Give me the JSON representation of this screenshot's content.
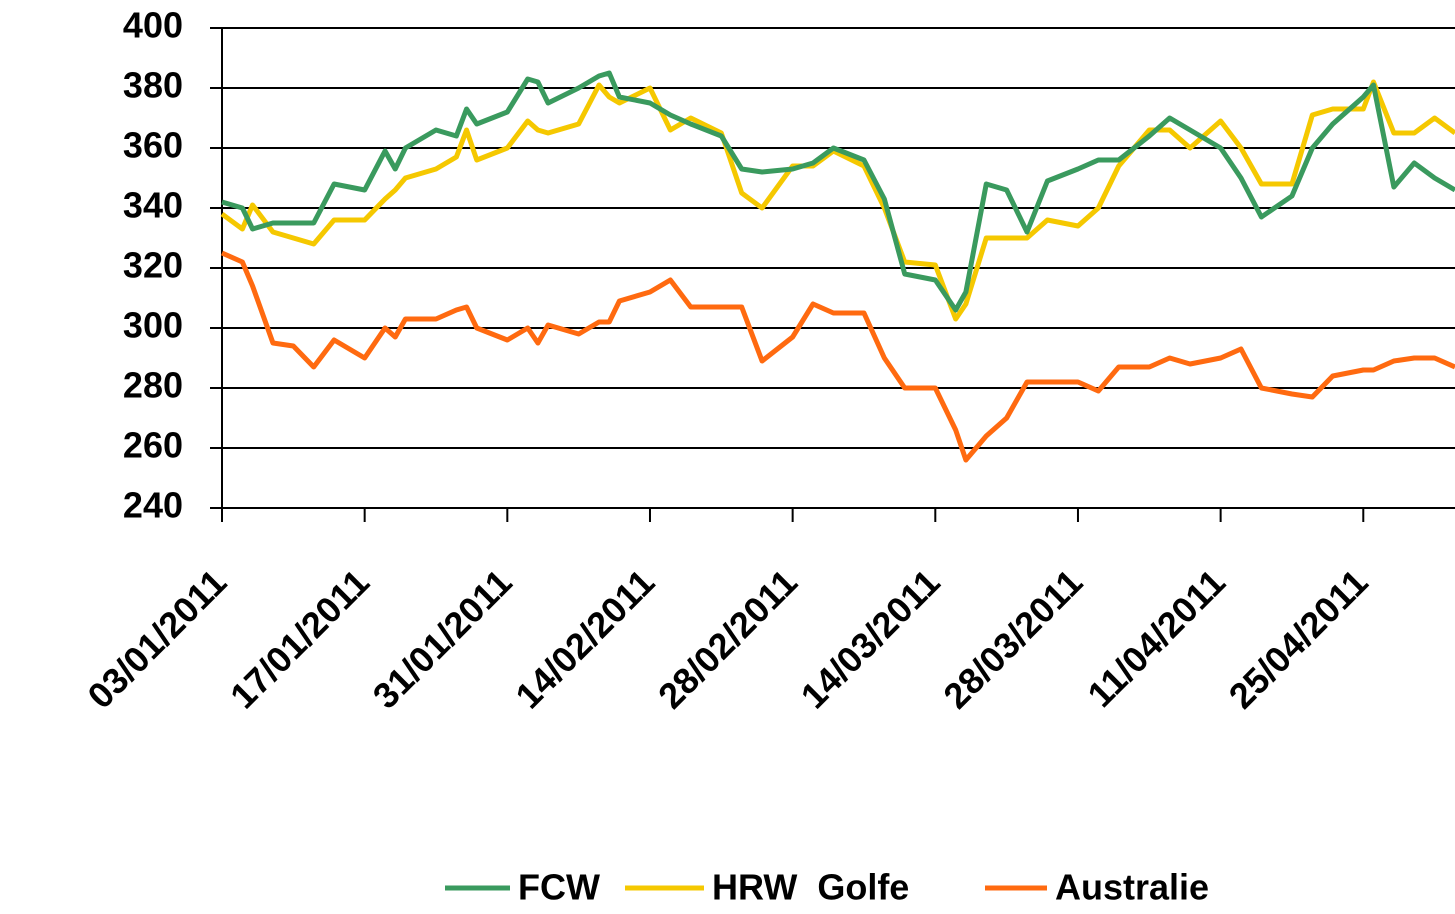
{
  "chart_data": {
    "type": "line",
    "x": [
      "03/01/2011",
      "05/01/2011",
      "06/01/2011",
      "08/01/2011",
      "10/01/2011",
      "12/01/2011",
      "14/01/2011",
      "17/01/2011",
      "19/01/2011",
      "20/01/2011",
      "21/01/2011",
      "24/01/2011",
      "26/01/2011",
      "27/01/2011",
      "28/01/2011",
      "31/01/2011",
      "02/02/2011",
      "03/02/2011",
      "04/02/2011",
      "07/02/2011",
      "09/02/2011",
      "10/02/2011",
      "11/02/2011",
      "14/02/2011",
      "16/02/2011",
      "18/02/2011",
      "21/02/2011",
      "23/02/2011",
      "25/02/2011",
      "28/02/2011",
      "02/03/2011",
      "04/03/2011",
      "07/03/2011",
      "09/03/2011",
      "11/03/2011",
      "14/03/2011",
      "16/03/2011",
      "17/03/2011",
      "19/03/2011",
      "21/03/2011",
      "23/03/2011",
      "25/03/2011",
      "28/03/2011",
      "30/03/2011",
      "01/04/2011",
      "04/04/2011",
      "06/04/2011",
      "08/04/2011",
      "11/04/2011",
      "13/04/2011",
      "15/04/2011",
      "18/04/2011",
      "20/04/2011",
      "22/04/2011",
      "25/04/2011",
      "26/04/2011",
      "28/04/2011",
      "30/04/2011",
      "02/05/2011",
      "04/05/2011"
    ],
    "series": [
      {
        "name": "FCW",
        "color": "#3a9a5e",
        "values": [
          342,
          340,
          333,
          335,
          335,
          335,
          348,
          346,
          359,
          353,
          360,
          366,
          364,
          373,
          368,
          372,
          383,
          382,
          375,
          380,
          384,
          385,
          377,
          375,
          371,
          368,
          364,
          353,
          352,
          353,
          355,
          360,
          356,
          343,
          318,
          316,
          306,
          312,
          348,
          346,
          332,
          349,
          353,
          356,
          356,
          364,
          370,
          366,
          360,
          350,
          337,
          344,
          360,
          368,
          377,
          381,
          347,
          355,
          350,
          346
        ]
      },
      {
        "name": "HRW  Golfe",
        "color": "#f5c800",
        "values": [
          338,
          333,
          341,
          332,
          330,
          328,
          336,
          336,
          343,
          346,
          350,
          353,
          357,
          366,
          356,
          360,
          369,
          366,
          365,
          368,
          381,
          377,
          375,
          380,
          366,
          370,
          365,
          345,
          340,
          354,
          354,
          359,
          354,
          340,
          322,
          321,
          303,
          308,
          330,
          330,
          330,
          336,
          334,
          340,
          354,
          366,
          366,
          360,
          369,
          360,
          348,
          348,
          371,
          373,
          373,
          382,
          365,
          365,
          370,
          365
        ]
      },
      {
        "name": "Australie",
        "color": "#ff6a10",
        "values": [
          325,
          322,
          314,
          295,
          294,
          287,
          296,
          290,
          300,
          297,
          303,
          303,
          306,
          307,
          300,
          296,
          300,
          295,
          301,
          298,
          302,
          302,
          309,
          312,
          316,
          307,
          307,
          307,
          289,
          297,
          308,
          305,
          305,
          290,
          280,
          280,
          266,
          256,
          264,
          270,
          282,
          282,
          282,
          279,
          287,
          287,
          290,
          288,
          290,
          293,
          280,
          278,
          277,
          284,
          286,
          286,
          289,
          290,
          290,
          287
        ]
      }
    ],
    "xlim": [
      "03/01/2011",
      "04/05/2011"
    ],
    "xticks": [
      "03/01/2011",
      "17/01/2011",
      "31/01/2011",
      "14/02/2011",
      "28/02/2011",
      "14/03/2011",
      "28/03/2011",
      "11/04/2011",
      "25/04/2011"
    ],
    "ylim": [
      240,
      400
    ],
    "yticks": [
      240,
      260,
      280,
      300,
      320,
      340,
      360,
      380,
      400
    ],
    "grid": true
  }
}
